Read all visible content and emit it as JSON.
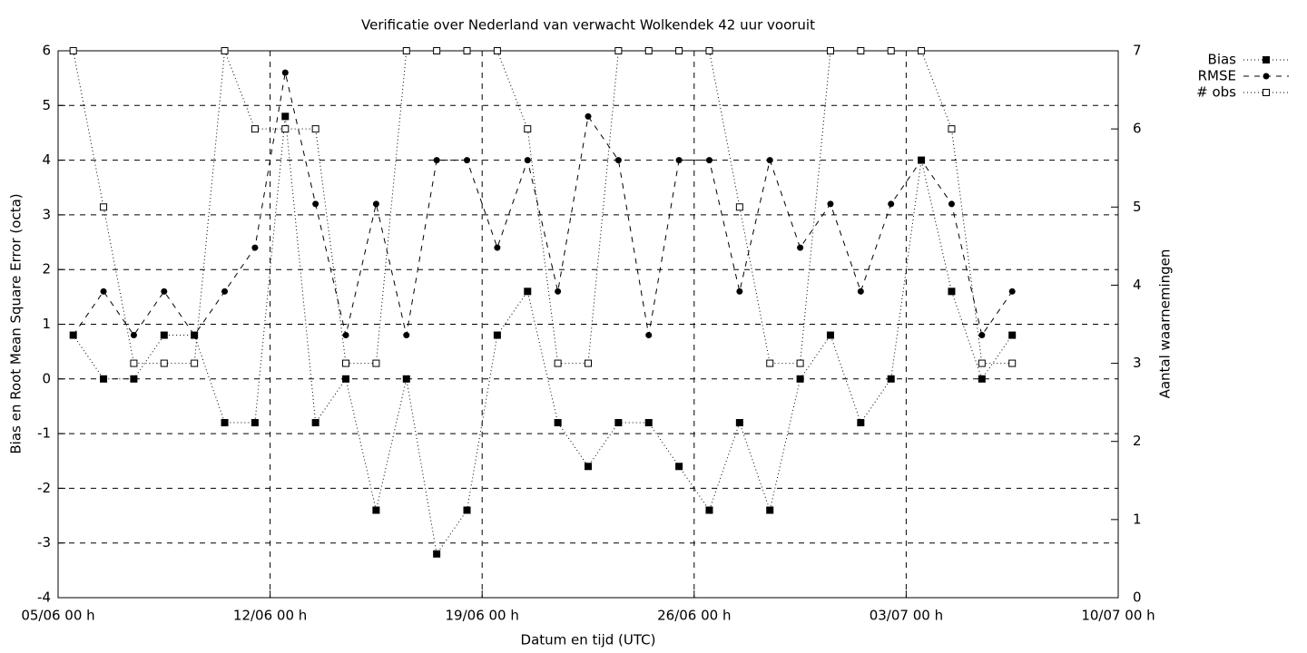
{
  "chart_data": {
    "type": "line",
    "title": "Verificatie over Nederland van verwacht Wolkendek 42 uur vooruit",
    "xlabel": "Datum en tijd (UTC)",
    "ylabel": "Bias en Root Mean Square Error (octa)",
    "y2label": "Aantal waarnemingen",
    "xlim": [
      0,
      35
    ],
    "xticks": [
      {
        "value": 0,
        "label": "05/06 00 h"
      },
      {
        "value": 7,
        "label": "12/06 00 h"
      },
      {
        "value": 14,
        "label": "19/06 00 h"
      },
      {
        "value": 21,
        "label": "26/06 00 h"
      },
      {
        "value": 28,
        "label": "03/07 00 h"
      },
      {
        "value": 35,
        "label": "10/07 00 h"
      }
    ],
    "ylim": [
      -4,
      6
    ],
    "yticks": [
      -4,
      -3,
      -2,
      -1,
      0,
      1,
      2,
      3,
      4,
      5,
      6
    ],
    "y2lim": [
      0,
      7
    ],
    "y2ticks": [
      0,
      1,
      2,
      3,
      4,
      5,
      6,
      7
    ],
    "grid": true,
    "legend": "top-right-outside",
    "x": [
      0.5,
      1.5,
      2.5,
      3.5,
      4.5,
      5.5,
      6.5,
      7.5,
      8.5,
      9.5,
      10.5,
      11.5,
      12.5,
      13.5,
      14.5,
      15.5,
      16.5,
      17.5,
      18.5,
      19.5,
      20.5,
      21.5,
      22.5,
      23.5,
      24.5,
      25.5,
      26.5,
      27.5,
      28.5,
      29.5,
      30.5,
      31.5
    ],
    "series": [
      {
        "name": "Bias",
        "color": "#000000",
        "dash": "dotted",
        "marker": "square-filled",
        "values": [
          0.8,
          0,
          0,
          0.8,
          0.8,
          -0.8,
          -0.8,
          4.8,
          -0.8,
          0,
          -2.4,
          0,
          -3.2,
          -2.4,
          0.8,
          1.6,
          -0.8,
          -1.6,
          -0.8,
          -0.8,
          -1.6,
          -2.4,
          -0.8,
          -2.4,
          0,
          0.8,
          -0.8,
          0,
          4.0,
          1.6,
          0,
          0.8
        ]
      },
      {
        "name": "RMSE",
        "color": "#000000",
        "dash": "dashed",
        "marker": "circle-filled",
        "values": [
          0.8,
          1.6,
          0.8,
          1.6,
          0.8,
          1.6,
          2.4,
          5.6,
          3.2,
          0.8,
          3.2,
          0.8,
          4.0,
          4.0,
          2.4,
          4.0,
          1.6,
          4.8,
          4.0,
          0.8,
          4.0,
          4.0,
          1.6,
          4.0,
          2.4,
          3.2,
          1.6,
          3.2,
          4.0,
          3.2,
          0.8,
          1.6
        ]
      },
      {
        "name": "# obs",
        "color": "#000000",
        "dash": "dotted",
        "marker": "square-open",
        "axis": "y2",
        "values": [
          7,
          5,
          3,
          3,
          3,
          7,
          6,
          6,
          6,
          3,
          3,
          7,
          7,
          7,
          7,
          6,
          3,
          3,
          7,
          7,
          7,
          7,
          5,
          3,
          3,
          7,
          7,
          7,
          7,
          6,
          3,
          3
        ]
      }
    ]
  }
}
